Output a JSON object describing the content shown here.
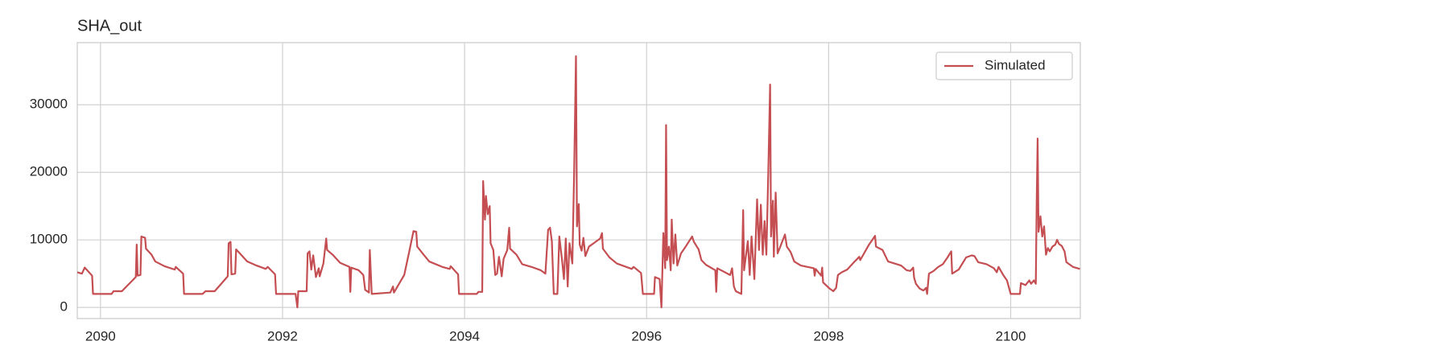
{
  "chart_data": {
    "type": "line",
    "title": "SHA_out",
    "x": [
      2089.745,
      2089.796,
      2089.827,
      2089.908,
      2089.918,
      2090.122,
      2090.143,
      2090.235,
      2090.388,
      2090.398,
      2090.408,
      2090.439,
      2090.449,
      2090.49,
      2090.5,
      2090.561,
      2090.602,
      2090.704,
      2090.816,
      2090.827,
      2090.908,
      2090.918,
      2091.122,
      2091.153,
      2091.255,
      2091.398,
      2091.408,
      2091.429,
      2091.439,
      2091.48,
      2091.49,
      2091.531,
      2091.612,
      2091.714,
      2091.816,
      2091.837,
      2091.918,
      2091.929,
      2092.143,
      2092.163,
      2092.173,
      2092.265,
      2092.276,
      2092.296,
      2092.316,
      2092.337,
      2092.367,
      2092.398,
      2092.408,
      2092.449,
      2092.48,
      2092.49,
      2092.551,
      2092.633,
      2092.735,
      2092.745,
      2092.755,
      2092.837,
      2092.888,
      2092.908,
      2092.949,
      2092.959,
      2092.98,
      2093.184,
      2093.214,
      2093.224,
      2093.337,
      2093.388,
      2093.439,
      2093.469,
      2093.48,
      2093.551,
      2093.612,
      2093.755,
      2093.837,
      2093.847,
      2093.929,
      2093.939,
      2094.133,
      2094.153,
      2094.194,
      2094.204,
      2094.224,
      2094.235,
      2094.255,
      2094.276,
      2094.286,
      2094.316,
      2094.337,
      2094.357,
      2094.378,
      2094.408,
      2094.429,
      2094.469,
      2094.49,
      2094.5,
      2094.571,
      2094.633,
      2094.735,
      2094.837,
      2094.888,
      2094.918,
      2094.939,
      2094.959,
      2094.98,
      2095.02,
      2095.041,
      2095.071,
      2095.092,
      2095.112,
      2095.133,
      2095.153,
      2095.184,
      2095.204,
      2095.224,
      2095.235,
      2095.255,
      2095.265,
      2095.286,
      2095.306,
      2095.327,
      2095.367,
      2095.429,
      2095.49,
      2095.51,
      2095.52,
      2095.592,
      2095.673,
      2095.837,
      2095.857,
      2095.939,
      2095.959,
      2096.082,
      2096.092,
      2096.143,
      2096.163,
      2096.184,
      2096.204,
      2096.214,
      2096.224,
      2096.245,
      2096.265,
      2096.276,
      2096.296,
      2096.316,
      2096.337,
      2096.378,
      2096.429,
      2096.5,
      2096.52,
      2096.571,
      2096.602,
      2096.653,
      2096.755,
      2096.765,
      2096.776,
      2096.918,
      2096.939,
      2096.959,
      2096.98,
      2097.041,
      2097.061,
      2097.071,
      2097.112,
      2097.133,
      2097.153,
      2097.184,
      2097.214,
      2097.235,
      2097.255,
      2097.276,
      2097.296,
      2097.316,
      2097.337,
      2097.357,
      2097.367,
      2097.388,
      2097.398,
      2097.418,
      2097.439,
      2097.469,
      2097.52,
      2097.541,
      2097.582,
      2097.622,
      2097.694,
      2097.837,
      2097.847,
      2097.857,
      2097.918,
      2097.929,
      2097.939,
      2098.01,
      2098.051,
      2098.082,
      2098.102,
      2098.143,
      2098.204,
      2098.286,
      2098.337,
      2098.347,
      2098.439,
      2098.49,
      2098.51,
      2098.52,
      2098.592,
      2098.653,
      2098.796,
      2098.857,
      2098.898,
      2098.929,
      2098.939,
      2098.959,
      2099.0,
      2099.041,
      2099.071,
      2099.082,
      2099.102,
      2099.153,
      2099.204,
      2099.255,
      2099.306,
      2099.347,
      2099.357,
      2099.429,
      2099.51,
      2099.571,
      2099.602,
      2099.643,
      2099.735,
      2099.816,
      2099.847,
      2099.867,
      2099.918,
      2099.959,
      2100.0,
      2100.102,
      2100.112,
      2100.163,
      2100.204,
      2100.224,
      2100.255,
      2100.276,
      2100.286,
      2100.296,
      2100.306,
      2100.327,
      2100.347,
      2100.367,
      2100.388,
      2100.408,
      2100.429,
      2100.459,
      2100.49,
      2100.51,
      2100.531,
      2100.561,
      2100.592,
      2100.612,
      2100.684,
      2100.76
    ],
    "series": [
      {
        "name": "Simulated",
        "color": "#c44e52",
        "values": [
          5200,
          5000,
          5900,
          4700,
          2000,
          2000,
          2400,
          2400,
          4500,
          9300,
          4700,
          4800,
          10500,
          10300,
          8700,
          7800,
          6800,
          6100,
          5600,
          6000,
          5000,
          2000,
          2000,
          2400,
          2400,
          4600,
          9500,
          9700,
          4900,
          5000,
          8600,
          8000,
          6800,
          6200,
          5700,
          6000,
          4900,
          2000,
          2000,
          0,
          2400,
          2400,
          8000,
          8300,
          5600,
          7700,
          4500,
          5800,
          4600,
          6500,
          10200,
          8500,
          7800,
          6600,
          6000,
          2300,
          5900,
          5500,
          4800,
          2600,
          2200,
          8500,
          2000,
          2200,
          3100,
          2200,
          4800,
          8000,
          11300,
          11200,
          9000,
          7800,
          6800,
          6000,
          5700,
          6100,
          4900,
          2000,
          2000,
          2300,
          2300,
          18700,
          13000,
          16500,
          13800,
          15000,
          9500,
          8500,
          4800,
          5000,
          7500,
          4600,
          7200,
          8500,
          11800,
          8700,
          7800,
          6400,
          6000,
          5500,
          5000,
          11500,
          11800,
          9800,
          2000,
          2000,
          10500,
          7000,
          4200,
          10200,
          3100,
          9500,
          6500,
          20000,
          37200,
          12000,
          15300,
          9300,
          8400,
          10300,
          7600,
          9000,
          9600,
          10200,
          11000,
          8700,
          7400,
          6500,
          5700,
          6000,
          5100,
          2000,
          2000,
          4500,
          4200,
          0,
          11000,
          5800,
          27000,
          7000,
          9000,
          5500,
          13000,
          6500,
          10800,
          6200,
          8000,
          9000,
          10500,
          9700,
          8600,
          7000,
          6300,
          5500,
          2300,
          5800,
          4800,
          5800,
          3100,
          2400,
          2000,
          14400,
          5500,
          9800,
          4800,
          10500,
          4200,
          16000,
          8500,
          15200,
          7800,
          12800,
          7800,
          20000,
          33000,
          10500,
          15800,
          7500,
          17000,
          8000,
          9000,
          10800,
          9000,
          8200,
          6800,
          6200,
          5800,
          4700,
          5700,
          4700,
          5900,
          3700,
          2800,
          2400,
          2900,
          4800,
          5200,
          5600,
          6800,
          7500,
          7000,
          9200,
          10200,
          10600,
          9000,
          8500,
          6800,
          6200,
          5500,
          5400,
          5900,
          4400,
          3500,
          2800,
          2500,
          2900,
          2000,
          5000,
          5400,
          6000,
          6400,
          7400,
          8300,
          5000,
          5600,
          7400,
          7700,
          7600,
          6700,
          6400,
          5800,
          5200,
          6000,
          4800,
          4000,
          2000,
          2000,
          3600,
          3300,
          4000,
          3500,
          4000,
          3500,
          15800,
          25000,
          11200,
          13500,
          10500,
          12000,
          7800,
          8800,
          8300,
          9000,
          9300,
          10000,
          9400,
          9100,
          8300,
          6700,
          6000,
          5700
        ]
      }
    ],
    "xlim": [
      2089.745,
      2100.765
    ],
    "ylim": [
      -1650,
      39200
    ],
    "xticks": [
      2090,
      2092,
      2094,
      2096,
      2098,
      2100
    ],
    "yticks": [
      0,
      10000,
      20000,
      30000
    ],
    "grid": true,
    "legend": "upper right"
  }
}
